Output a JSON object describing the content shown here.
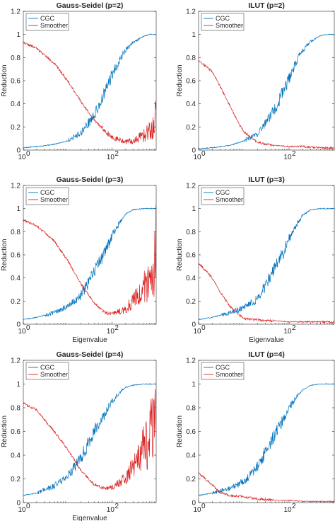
{
  "chart_data": [
    {
      "type": "line",
      "title": "Gauss-Seidel (p=2)",
      "xlabel": "",
      "ylabel": "Reduction",
      "xscale": "log",
      "xlim": [
        1,
        1000
      ],
      "ylim": [
        0,
        1.2
      ],
      "xticks": [
        {
          "value": 1,
          "label": "10",
          "exp": "0"
        },
        {
          "value": 100,
          "label": "10",
          "exp": "2"
        }
      ],
      "yticks": [
        "0",
        "0.2",
        "0.4",
        "0.6",
        "0.8",
        "1",
        "1.2"
      ],
      "legend": "top-left",
      "series": [
        {
          "name": "CGC",
          "color": "#0072BD",
          "x": [
            1,
            2,
            5,
            10,
            20,
            40,
            70,
            100,
            150,
            200,
            300,
            500,
            700,
            800,
            1000
          ],
          "y": [
            0.02,
            0.03,
            0.05,
            0.08,
            0.15,
            0.3,
            0.5,
            0.65,
            0.78,
            0.86,
            0.93,
            0.98,
            1.0,
            1.0,
            1.0
          ]
        },
        {
          "name": "Smoother",
          "color": "#D92020",
          "x": [
            1,
            2,
            5,
            10,
            20,
            40,
            70,
            100,
            200,
            300,
            500,
            700,
            900,
            1000
          ],
          "y": [
            0.93,
            0.88,
            0.75,
            0.6,
            0.42,
            0.26,
            0.17,
            0.11,
            0.07,
            0.08,
            0.12,
            0.16,
            0.2,
            0.45
          ]
        }
      ]
    },
    {
      "type": "line",
      "title": "ILUT (p=2)",
      "xlabel": "",
      "ylabel": "Reduction",
      "xscale": "log",
      "xlim": [
        1,
        1000
      ],
      "ylim": [
        0,
        1.2
      ],
      "xticks": [
        {
          "value": 1,
          "label": "10",
          "exp": "0"
        },
        {
          "value": 100,
          "label": "10",
          "exp": "2"
        }
      ],
      "yticks": [
        "0",
        "0.2",
        "0.4",
        "0.6",
        "0.8",
        "1",
        "1.2"
      ],
      "legend": "top-left",
      "series": [
        {
          "name": "CGC",
          "color": "#0072BD",
          "x": [
            1,
            2,
            5,
            10,
            20,
            40,
            70,
            100,
            150,
            200,
            300,
            500,
            700,
            1000
          ],
          "y": [
            0.01,
            0.02,
            0.04,
            0.08,
            0.14,
            0.3,
            0.48,
            0.62,
            0.78,
            0.86,
            0.94,
            0.99,
            1.0,
            1.0
          ]
        },
        {
          "name": "Smoother",
          "color": "#D92020",
          "x": [
            1,
            2,
            3,
            5,
            8,
            10,
            15,
            20,
            30,
            50,
            100,
            200,
            500,
            1000
          ],
          "y": [
            0.77,
            0.68,
            0.55,
            0.38,
            0.22,
            0.16,
            0.1,
            0.07,
            0.05,
            0.04,
            0.03,
            0.03,
            0.02,
            0.02
          ]
        }
      ]
    },
    {
      "type": "line",
      "title": "Gauss-Seidel (p=3)",
      "xlabel": "Eigenvalue",
      "ylabel": "Reduction",
      "xscale": "log",
      "xlim": [
        1,
        1000
      ],
      "ylim": [
        0,
        1.2
      ],
      "xticks": [
        {
          "value": 1,
          "label": "10",
          "exp": "0"
        },
        {
          "value": 100,
          "label": "10",
          "exp": "2"
        }
      ],
      "yticks": [
        "0",
        "0.2",
        "0.4",
        "0.6",
        "0.8",
        "1",
        "1.2"
      ],
      "legend": "top-left",
      "series": [
        {
          "name": "CGC",
          "color": "#0072BD",
          "x": [
            1,
            2,
            5,
            10,
            20,
            40,
            70,
            100,
            150,
            200,
            300,
            500,
            700,
            1000
          ],
          "y": [
            0.04,
            0.06,
            0.1,
            0.15,
            0.25,
            0.45,
            0.62,
            0.76,
            0.88,
            0.95,
            0.99,
            1.0,
            1.0,
            1.0
          ]
        },
        {
          "name": "Smoother",
          "color": "#D92020",
          "x": [
            1,
            2,
            5,
            10,
            20,
            40,
            70,
            100,
            200,
            300,
            500,
            700,
            900,
            1000
          ],
          "y": [
            0.9,
            0.85,
            0.72,
            0.55,
            0.35,
            0.18,
            0.1,
            0.09,
            0.13,
            0.2,
            0.3,
            0.38,
            0.45,
            0.85
          ]
        }
      ]
    },
    {
      "type": "line",
      "title": "ILUT (p=3)",
      "xlabel": "Eigenvalue",
      "ylabel": "Reduction",
      "xscale": "log",
      "xlim": [
        1,
        1000
      ],
      "ylim": [
        0,
        1.2
      ],
      "xticks": [
        {
          "value": 1,
          "label": "10",
          "exp": "0"
        },
        {
          "value": 100,
          "label": "10",
          "exp": "2"
        }
      ],
      "yticks": [
        "0",
        "0.2",
        "0.4",
        "0.6",
        "0.8",
        "1",
        "1.2"
      ],
      "legend": "top-left",
      "series": [
        {
          "name": "CGC",
          "color": "#0072BD",
          "x": [
            1,
            2,
            5,
            10,
            20,
            40,
            70,
            100,
            150,
            200,
            300,
            500,
            700,
            1000
          ],
          "y": [
            0.04,
            0.06,
            0.1,
            0.14,
            0.22,
            0.42,
            0.6,
            0.74,
            0.87,
            0.94,
            0.99,
            1.0,
            1.0,
            1.0
          ]
        },
        {
          "name": "Smoother",
          "color": "#D92020",
          "x": [
            1,
            2,
            3,
            5,
            8,
            10,
            15,
            20,
            30,
            50,
            100,
            200,
            500,
            1000
          ],
          "y": [
            0.53,
            0.4,
            0.28,
            0.15,
            0.08,
            0.05,
            0.04,
            0.04,
            0.03,
            0.03,
            0.02,
            0.02,
            0.02,
            0.02
          ]
        }
      ]
    },
    {
      "type": "line",
      "title": "Gauss-Seidel (p=4)",
      "xlabel": "Eigenvalue",
      "ylabel": "Reduction",
      "xscale": "log",
      "xlim": [
        1,
        1000
      ],
      "ylim": [
        0,
        1.2
      ],
      "xticks": [
        {
          "value": 1,
          "label": "10",
          "exp": "0"
        },
        {
          "value": 100,
          "label": "10",
          "exp": "2"
        }
      ],
      "yticks": [
        "0",
        "0.2",
        "0.4",
        "0.6",
        "0.8",
        "1",
        "1.2"
      ],
      "legend": "top-left",
      "series": [
        {
          "name": "CGC",
          "color": "#0072BD",
          "x": [
            1,
            2,
            5,
            10,
            20,
            40,
            70,
            100,
            150,
            200,
            300,
            500,
            700,
            1000
          ],
          "y": [
            0.06,
            0.08,
            0.14,
            0.22,
            0.38,
            0.6,
            0.75,
            0.85,
            0.93,
            0.97,
            0.99,
            1.0,
            1.0,
            1.0
          ]
        },
        {
          "name": "Smoother",
          "color": "#D92020",
          "x": [
            1,
            2,
            5,
            10,
            20,
            40,
            70,
            100,
            200,
            300,
            500,
            700,
            900,
            1000
          ],
          "y": [
            0.84,
            0.78,
            0.6,
            0.45,
            0.27,
            0.15,
            0.12,
            0.13,
            0.2,
            0.3,
            0.45,
            0.55,
            0.65,
            0.82
          ]
        }
      ]
    },
    {
      "type": "line",
      "title": "ILUT (p=4)",
      "xlabel": "",
      "ylabel": "Reduction",
      "xscale": "log",
      "xlim": [
        1,
        1000
      ],
      "ylim": [
        0,
        1.2
      ],
      "xticks": [
        {
          "value": 1,
          "label": "10",
          "exp": "0"
        },
        {
          "value": 100,
          "label": "10",
          "exp": "2"
        }
      ],
      "yticks": [
        "0",
        "0.2",
        "0.4",
        "0.6",
        "0.8",
        "1",
        "1.2"
      ],
      "legend": "top-left",
      "series": [
        {
          "name": "CGC",
          "color": "#0072BD",
          "x": [
            1,
            2,
            5,
            10,
            20,
            40,
            70,
            100,
            150,
            200,
            300,
            500,
            700,
            1000
          ],
          "y": [
            0.06,
            0.08,
            0.12,
            0.18,
            0.3,
            0.52,
            0.68,
            0.8,
            0.9,
            0.95,
            0.99,
            1.0,
            1.0,
            1.0
          ]
        },
        {
          "name": "Smoother",
          "color": "#D92020",
          "x": [
            1,
            2,
            3,
            5,
            10,
            20,
            50,
            100,
            200,
            500,
            1000
          ],
          "y": [
            0.25,
            0.15,
            0.08,
            0.06,
            0.05,
            0.03,
            0.02,
            0.02,
            0.01,
            0.01,
            0.01
          ]
        }
      ]
    }
  ]
}
